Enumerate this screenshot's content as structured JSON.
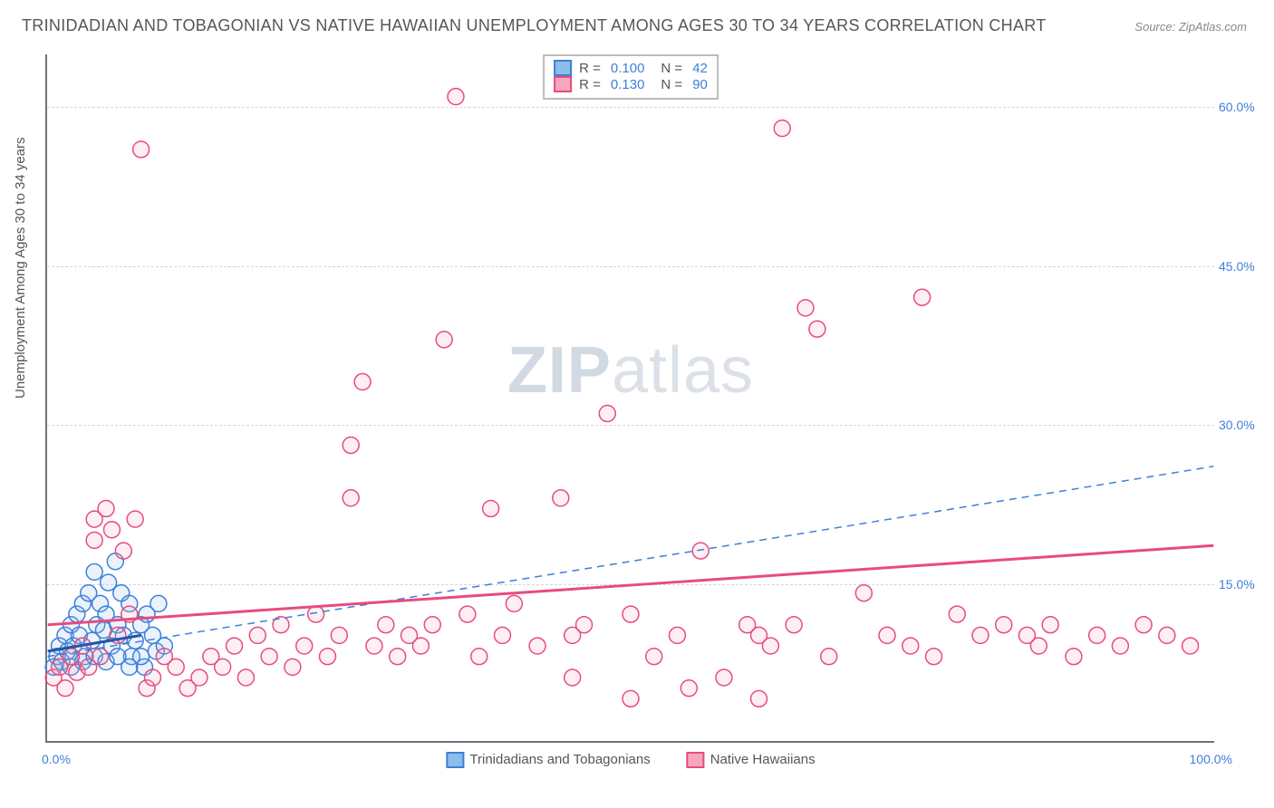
{
  "title": "TRINIDADIAN AND TOBAGONIAN VS NATIVE HAWAIIAN UNEMPLOYMENT AMONG AGES 30 TO 34 YEARS CORRELATION CHART",
  "source_label": "Source:",
  "source_name": "ZipAtlas.com",
  "ylabel": "Unemployment Among Ages 30 to 34 years",
  "watermark_a": "ZIP",
  "watermark_b": "atlas",
  "chart": {
    "type": "scatter",
    "xlim": [
      0,
      100
    ],
    "ylim": [
      0,
      65
    ],
    "yticks": [
      15,
      30,
      45,
      60
    ],
    "ytick_labels": [
      "15.0%",
      "30.0%",
      "45.0%",
      "60.0%"
    ],
    "xticks": [
      0,
      100
    ],
    "xtick_labels": [
      "0.0%",
      "100.0%"
    ],
    "grid_color": "#d6d6d6",
    "background_color": "#ffffff",
    "axis_color": "#6c757d",
    "tick_label_color": "#3d7fd9",
    "marker_radius": 9,
    "marker_stroke_width": 1.5,
    "series": [
      {
        "name": "Trinidadians and Tobagonians",
        "color_fill": "#8bbde8",
        "color_stroke": "#3d7fd9",
        "R": "0.100",
        "N": "42",
        "trend": {
          "x1": 0,
          "y1": 8.5,
          "x2": 8,
          "y2": 10,
          "style": "solid",
          "width": 3,
          "color": "#2456a6"
        },
        "trend2": {
          "x1": 0,
          "y1": 8,
          "x2": 100,
          "y2": 26,
          "style": "dashed",
          "width": 1.5,
          "color": "#3d7fd9"
        },
        "points": [
          [
            0.5,
            7
          ],
          [
            0.8,
            8
          ],
          [
            1,
            9
          ],
          [
            1.2,
            7.5
          ],
          [
            1.5,
            10
          ],
          [
            1.7,
            8.5
          ],
          [
            2,
            11
          ],
          [
            2.2,
            9
          ],
          [
            2.5,
            12
          ],
          [
            2.7,
            10
          ],
          [
            3,
            13
          ],
          [
            3.2,
            8
          ],
          [
            3.5,
            14
          ],
          [
            3.8,
            9.5
          ],
          [
            4,
            16
          ],
          [
            4.2,
            11
          ],
          [
            4.5,
            13
          ],
          [
            4.8,
            10.5
          ],
          [
            5,
            12
          ],
          [
            5.2,
            15
          ],
          [
            5.5,
            9
          ],
          [
            5.8,
            17
          ],
          [
            6,
            11
          ],
          [
            6.3,
            14
          ],
          [
            6.5,
            10
          ],
          [
            7,
            13
          ],
          [
            7.2,
            8
          ],
          [
            7.5,
            9.5
          ],
          [
            8,
            11
          ],
          [
            8.3,
            7
          ],
          [
            8.5,
            12
          ],
          [
            9,
            10
          ],
          [
            9.3,
            8.5
          ],
          [
            9.5,
            13
          ],
          [
            10,
            9
          ],
          [
            2,
            7
          ],
          [
            3,
            7.5
          ],
          [
            4,
            8
          ],
          [
            5,
            7.5
          ],
          [
            6,
            8
          ],
          [
            7,
            7
          ],
          [
            8,
            8
          ]
        ]
      },
      {
        "name": "Native Hawaiians",
        "color_fill": "#f5a8bc",
        "color_stroke": "#e94b7e",
        "R": "0.130",
        "N": "90",
        "trend": {
          "x1": 0,
          "y1": 11,
          "x2": 100,
          "y2": 18.5,
          "style": "solid",
          "width": 3,
          "color": "#e94b7e"
        },
        "points": [
          [
            0.5,
            6
          ],
          [
            1,
            7
          ],
          [
            1.5,
            5
          ],
          [
            2,
            8
          ],
          [
            2.5,
            6.5
          ],
          [
            3,
            9
          ],
          [
            3.5,
            7
          ],
          [
            4,
            19
          ],
          [
            4,
            21
          ],
          [
            4.5,
            8
          ],
          [
            5,
            22
          ],
          [
            5.5,
            20
          ],
          [
            6,
            10
          ],
          [
            6.5,
            18
          ],
          [
            7,
            12
          ],
          [
            7.5,
            21
          ],
          [
            8,
            56
          ],
          [
            8.5,
            5
          ],
          [
            9,
            6
          ],
          [
            10,
            8
          ],
          [
            11,
            7
          ],
          [
            12,
            5
          ],
          [
            13,
            6
          ],
          [
            14,
            8
          ],
          [
            15,
            7
          ],
          [
            16,
            9
          ],
          [
            17,
            6
          ],
          [
            18,
            10
          ],
          [
            19,
            8
          ],
          [
            20,
            11
          ],
          [
            21,
            7
          ],
          [
            22,
            9
          ],
          [
            23,
            12
          ],
          [
            24,
            8
          ],
          [
            25,
            10
          ],
          [
            26,
            23
          ],
          [
            26,
            28
          ],
          [
            27,
            34
          ],
          [
            28,
            9
          ],
          [
            29,
            11
          ],
          [
            30,
            8
          ],
          [
            31,
            10
          ],
          [
            32,
            9
          ],
          [
            33,
            11
          ],
          [
            34,
            38
          ],
          [
            35,
            61
          ],
          [
            36,
            12
          ],
          [
            37,
            8
          ],
          [
            38,
            22
          ],
          [
            39,
            10
          ],
          [
            40,
            13
          ],
          [
            42,
            9
          ],
          [
            44,
            23
          ],
          [
            45,
            10
          ],
          [
            46,
            11
          ],
          [
            48,
            31
          ],
          [
            50,
            12
          ],
          [
            52,
            8
          ],
          [
            54,
            10
          ],
          [
            56,
            18
          ],
          [
            58,
            6
          ],
          [
            60,
            11
          ],
          [
            61,
            10
          ],
          [
            62,
            9
          ],
          [
            63,
            58
          ],
          [
            64,
            11
          ],
          [
            65,
            41
          ],
          [
            66,
            39
          ],
          [
            67,
            8
          ],
          [
            70,
            14
          ],
          [
            72,
            10
          ],
          [
            74,
            9
          ],
          [
            75,
            42
          ],
          [
            76,
            8
          ],
          [
            78,
            12
          ],
          [
            80,
            10
          ],
          [
            82,
            11
          ],
          [
            84,
            10
          ],
          [
            85,
            9
          ],
          [
            86,
            11
          ],
          [
            88,
            8
          ],
          [
            90,
            10
          ],
          [
            92,
            9
          ],
          [
            94,
            11
          ],
          [
            96,
            10
          ],
          [
            98,
            9
          ],
          [
            61,
            4
          ],
          [
            55,
            5
          ],
          [
            50,
            4
          ],
          [
            45,
            6
          ]
        ]
      }
    ]
  },
  "legend_top": {
    "r_label": "R =",
    "n_label": "N ="
  },
  "legend_bottom": {
    "items": [
      "Trinidadians and Tobagonians",
      "Native Hawaiians"
    ]
  }
}
